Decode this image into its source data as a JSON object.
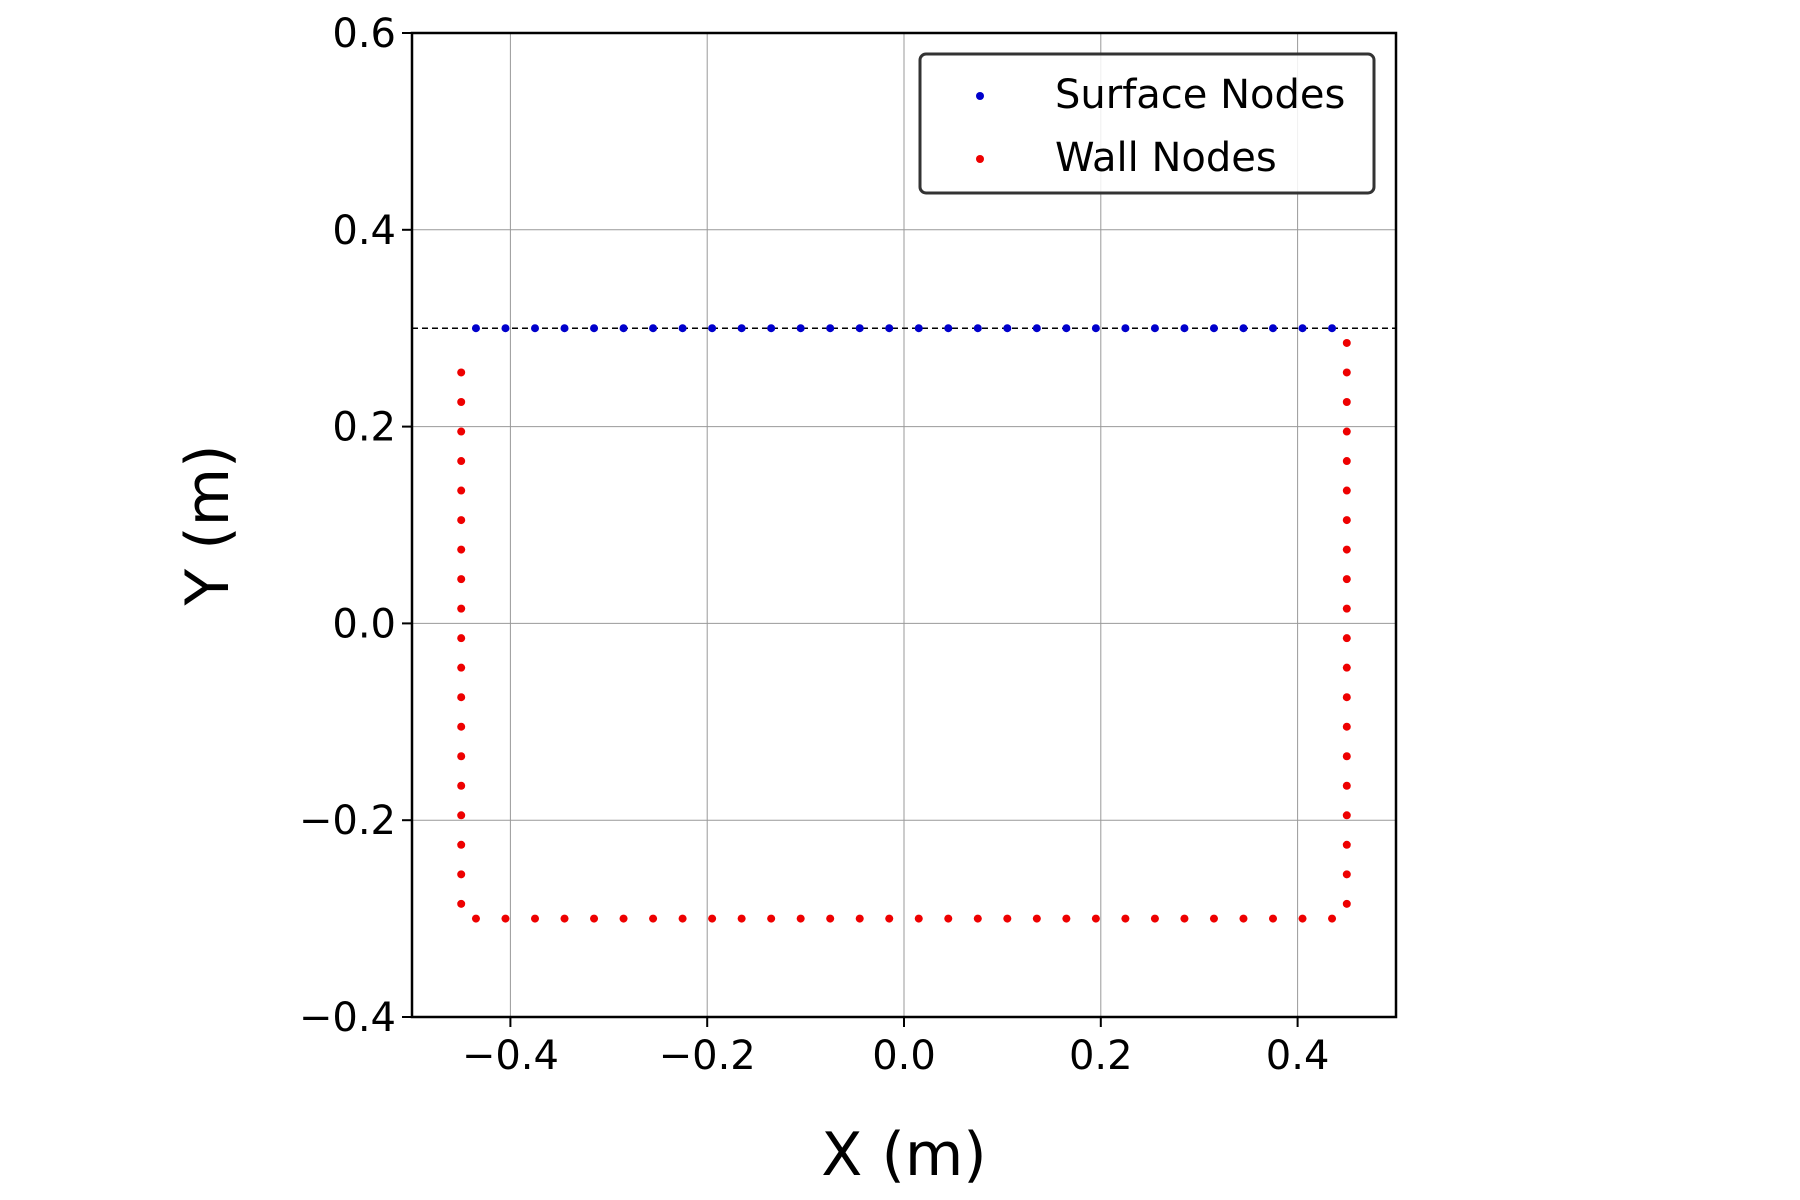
{
  "chart_data": {
    "type": "scatter",
    "xlabel": "X (m)",
    "ylabel": "Y (m)",
    "xlim": [
      -0.5,
      0.5
    ],
    "ylim": [
      -0.4,
      0.6
    ],
    "xticks": [
      {
        "value": -0.4,
        "label": "−0.4"
      },
      {
        "value": -0.2,
        "label": "−0.2"
      },
      {
        "value": 0.0,
        "label": "0.0"
      },
      0.2,
      0.4
    ],
    "yticks": [
      {
        "value": -0.4,
        "label": "−0.4"
      },
      {
        "value": -0.2,
        "label": "−0.2"
      },
      {
        "value": 0.0,
        "label": "0.0"
      },
      0.2,
      0.4,
      0.6
    ],
    "grid": true,
    "legend": "upper right",
    "hline": {
      "y": 0.3,
      "color": "#000000",
      "style": "dashed"
    },
    "series": [
      {
        "name": "Surface Nodes",
        "color": "#0000cc",
        "x": [
          -0.435,
          -0.405,
          -0.375,
          -0.345,
          -0.315,
          -0.285,
          -0.255,
          -0.225,
          -0.195,
          -0.165,
          -0.135,
          -0.105,
          -0.075,
          -0.045,
          -0.015,
          0.015,
          0.045,
          0.075,
          0.105,
          0.135,
          0.165,
          0.195,
          0.225,
          0.255,
          0.285,
          0.315,
          0.345,
          0.375,
          0.405,
          0.435
        ],
        "values": [
          0.3,
          0.3,
          0.3,
          0.3,
          0.3,
          0.3,
          0.3,
          0.3,
          0.3,
          0.3,
          0.3,
          0.3,
          0.3,
          0.3,
          0.3,
          0.3,
          0.3,
          0.3,
          0.3,
          0.3,
          0.3,
          0.3,
          0.3,
          0.3,
          0.3,
          0.3,
          0.3,
          0.3,
          0.3,
          0.3
        ]
      },
      {
        "name": "Wall Nodes",
        "color": "#ee0000",
        "x": [
          -0.45,
          -0.45,
          -0.45,
          -0.45,
          -0.45,
          -0.45,
          -0.45,
          -0.45,
          -0.45,
          -0.45,
          -0.45,
          -0.45,
          -0.45,
          -0.45,
          -0.45,
          -0.45,
          -0.45,
          -0.45,
          -0.45,
          -0.435,
          -0.405,
          -0.375,
          -0.345,
          -0.315,
          -0.285,
          -0.255,
          -0.225,
          -0.195,
          -0.165,
          -0.135,
          -0.105,
          -0.075,
          -0.045,
          -0.015,
          0.015,
          0.045,
          0.075,
          0.105,
          0.135,
          0.165,
          0.195,
          0.225,
          0.255,
          0.285,
          0.315,
          0.345,
          0.375,
          0.405,
          0.435,
          0.45,
          0.45,
          0.45,
          0.45,
          0.45,
          0.45,
          0.45,
          0.45,
          0.45,
          0.45,
          0.45,
          0.45,
          0.45,
          0.45,
          0.45,
          0.45,
          0.45,
          0.45,
          0.45,
          0.45
        ],
        "values": [
          0.255,
          0.225,
          0.195,
          0.165,
          0.135,
          0.105,
          0.075,
          0.045,
          0.015,
          -0.015,
          -0.045,
          -0.075,
          -0.105,
          -0.135,
          -0.165,
          -0.195,
          -0.225,
          -0.255,
          -0.285,
          -0.3,
          -0.3,
          -0.3,
          -0.3,
          -0.3,
          -0.3,
          -0.3,
          -0.3,
          -0.3,
          -0.3,
          -0.3,
          -0.3,
          -0.3,
          -0.3,
          -0.3,
          -0.3,
          -0.3,
          -0.3,
          -0.3,
          -0.3,
          -0.3,
          -0.3,
          -0.3,
          -0.3,
          -0.3,
          -0.3,
          -0.3,
          -0.3,
          -0.3,
          -0.3,
          -0.285,
          -0.255,
          -0.225,
          -0.195,
          -0.165,
          -0.135,
          -0.105,
          -0.075,
          -0.045,
          -0.015,
          0.015,
          0.045,
          0.075,
          0.105,
          0.135,
          0.165,
          0.195,
          0.225,
          0.255,
          0.285
        ]
      }
    ]
  }
}
